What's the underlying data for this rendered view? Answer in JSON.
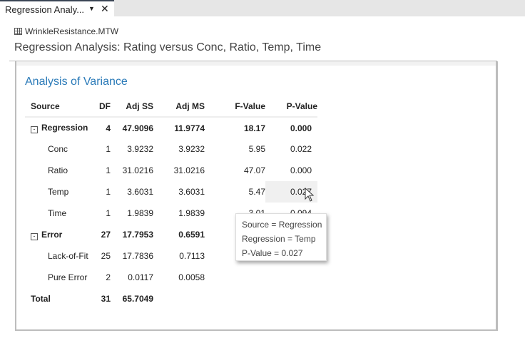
{
  "tab": {
    "label": "Regression Analy...",
    "dropdown_icon": "caret-down-icon",
    "close_icon": "close-icon"
  },
  "worksheet": {
    "icon": "grid-icon",
    "name": "WrinkleResistance.MTW"
  },
  "title": "Regression Analysis: Rating versus Conc, Ratio, Temp, Time",
  "section": "Analysis of Variance",
  "table": {
    "headers": [
      "Source",
      "DF",
      "Adj SS",
      "Adj MS",
      "F-Value",
      "P-Value"
    ],
    "rows": [
      {
        "source": "Regression",
        "df": "4",
        "adj_ss": "47.9096",
        "adj_ms": "11.9774",
        "f": "18.17",
        "p": "0.000"
      },
      {
        "source": "Conc",
        "df": "1",
        "adj_ss": "3.9232",
        "adj_ms": "3.9232",
        "f": "5.95",
        "p": "0.022"
      },
      {
        "source": "Ratio",
        "df": "1",
        "adj_ss": "31.0216",
        "adj_ms": "31.0216",
        "f": "47.07",
        "p": "0.000"
      },
      {
        "source": "Temp",
        "df": "1",
        "adj_ss": "3.6031",
        "adj_ms": "3.6031",
        "f": "5.47",
        "p": "0.027"
      },
      {
        "source": "Time",
        "df": "1",
        "adj_ss": "1.9839",
        "adj_ms": "1.9839",
        "f": "3.01",
        "p": "0.094"
      },
      {
        "source": "Error",
        "df": "27",
        "adj_ss": "17.7953",
        "adj_ms": "0.6591",
        "f": "",
        "p": ""
      },
      {
        "source": "Lack-of-Fit",
        "df": "25",
        "adj_ss": "17.7836",
        "adj_ms": "0.7113",
        "f": "",
        "p": ""
      },
      {
        "source": "Pure Error",
        "df": "2",
        "adj_ss": "0.0117",
        "adj_ms": "0.0058",
        "f": "",
        "p": ""
      },
      {
        "source": "Total",
        "df": "31",
        "adj_ss": "65.7049",
        "adj_ms": "",
        "f": "",
        "p": ""
      }
    ]
  },
  "tooltip": [
    "Source = Regression",
    "Regression = Temp",
    "P-Value = 0.027"
  ],
  "accent": "#2a7ab8"
}
